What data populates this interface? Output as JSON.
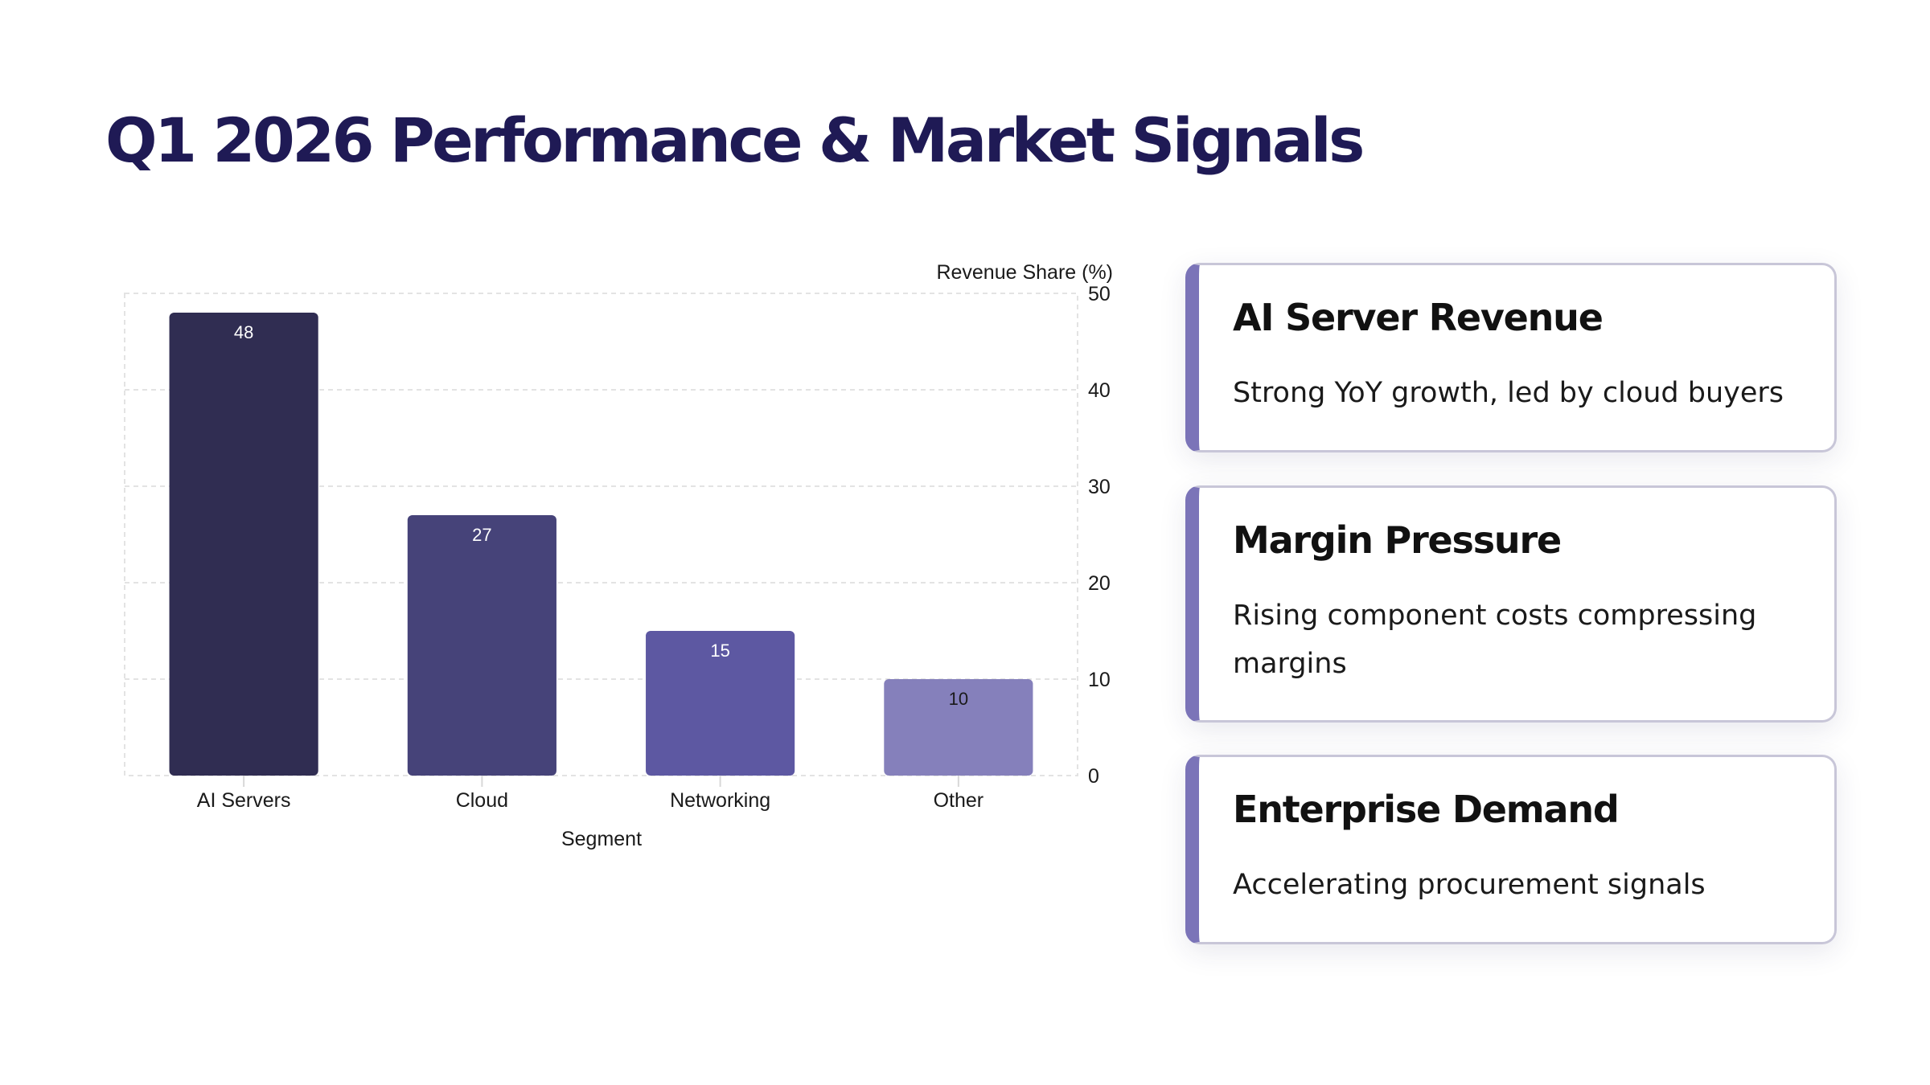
{
  "slide": {
    "title": "Q1 2026 Performance & Market Signals"
  },
  "chart_data": {
    "type": "bar",
    "categories": [
      "AI Servers",
      "Cloud",
      "Networking",
      "Other"
    ],
    "values": [
      48,
      27,
      15,
      10
    ],
    "bar_colors": [
      "#302d52",
      "#464379",
      "#5d58a2",
      "#8580bb"
    ],
    "data_label_colors": [
      "#ffffff",
      "#ffffff",
      "#ffffff",
      "#1a1a1a"
    ],
    "title": "",
    "xlabel": "Segment",
    "ylabel": "Revenue Share (%)",
    "ylim": [
      0,
      50
    ],
    "yticks": [
      0,
      10,
      20,
      30,
      40,
      50
    ],
    "y_axis_side": "right",
    "grid": true,
    "data_labels": true
  },
  "cards": [
    {
      "title": "AI Server Revenue",
      "body": "Strong YoY growth, led by cloud buyers"
    },
    {
      "title": "Margin Pressure",
      "body": "Rising component costs compressing margins"
    },
    {
      "title": "Enterprise Demand",
      "body": "Accelerating procurement signals"
    }
  ],
  "colors": {
    "title": "#1f1a55",
    "card_accent": "#7b74b8",
    "card_border": "#c8c6d8"
  }
}
